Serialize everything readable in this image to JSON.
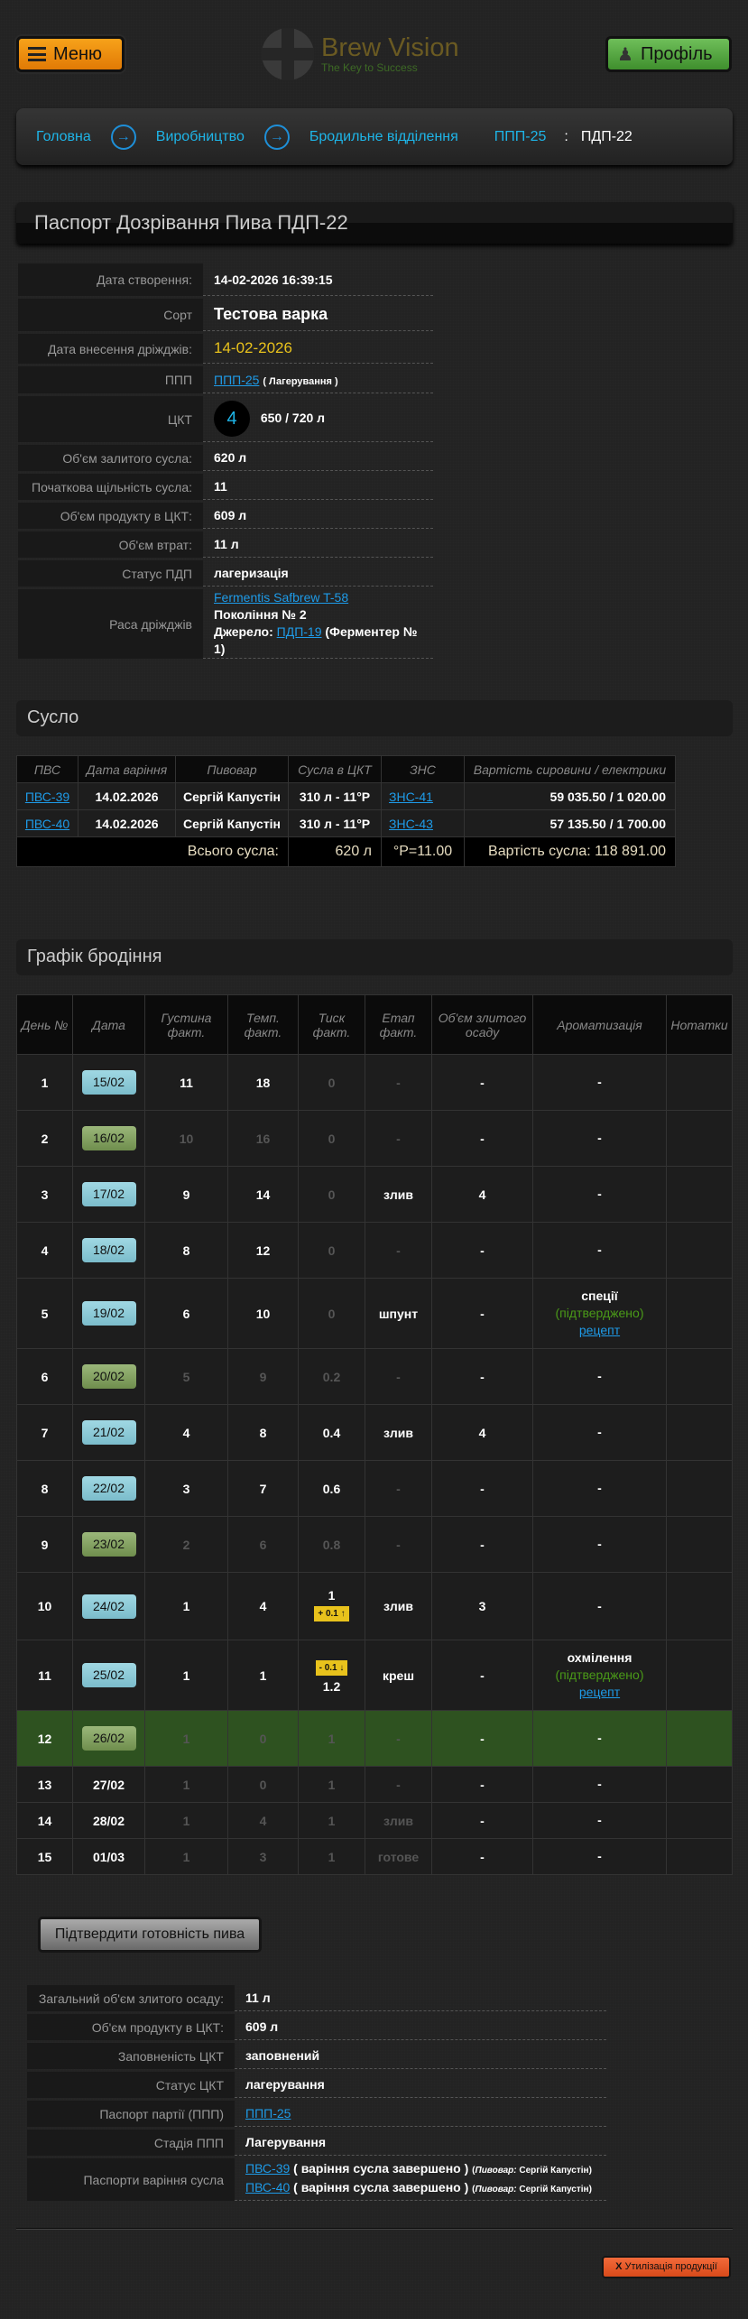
{
  "header": {
    "menu_label": "Меню",
    "logo_name": "Brew Vision",
    "logo_tagline": "The Key to Success",
    "profile_label": "Профіль"
  },
  "breadcrumb": {
    "items": [
      "Головна",
      "Виробництво",
      "Бродильне відділення",
      "ППП-25"
    ],
    "separator": ":",
    "current": "ПДП-22"
  },
  "page_title": "Паспорт Дозрівання Пива ПДП-22",
  "info": {
    "created_label": "Дата створення:",
    "created": "14-02-2026 16:39:15",
    "sort_label": "Сорт",
    "sort": "Тестова варка",
    "yeast_date_label": "Дата внесення дріжджів:",
    "yeast_date": "14-02-2026",
    "ppp_label": "ППП",
    "ppp_link": "ППП-25",
    "ppp_stage": "( Лагерування )",
    "ckt_label": "ЦКТ",
    "ckt_number": "4",
    "ckt_volume": "650 / 720 л",
    "wort_volume_label": "Об'єм залитого сусла:",
    "wort_volume": "620 л",
    "gravity_label": "Початкова щільність сусла:",
    "gravity": "11",
    "product_volume_label": "Об'єм продукту в ЦКТ:",
    "product_volume": "609 л",
    "loss_label": "Об'єм втрат:",
    "loss": "11 л",
    "status_label": "Статус ПДП",
    "status": "лагеризація",
    "yeast_label": "Раса дріжджів",
    "yeast_link": "Fermentis Safbrew T-58",
    "generation": "Покоління № 2",
    "source_label": "Джерело:",
    "source_link": "ПДП-19",
    "source_note": "(Ферментер № 1)"
  },
  "wort": {
    "title": "Сусло",
    "columns": [
      "ПВС",
      "Дата варіння",
      "Пивовар",
      "Сусла в ЦКТ",
      "ЗНС",
      "Вартість сировини / електрики"
    ],
    "rows": [
      {
        "pvs": "ПВС-39",
        "date": "14.02.2026",
        "brewer": "Сергій Капустін",
        "volume": "310 л - 11°P",
        "zns": "ЗНС-41",
        "cost": "59 035.50 / 1 020.00"
      },
      {
        "pvs": "ПВС-40",
        "date": "14.02.2026",
        "brewer": "Сергій Капустін",
        "volume": "310 л - 11°P",
        "zns": "ЗНС-43",
        "cost": "57 135.50 / 1 700.00"
      }
    ],
    "total_label": "Всього сусла:",
    "total_volume": "620 л",
    "total_gravity": "°P=11.00",
    "total_cost": "Вартість сусла: 118 891.00"
  },
  "ferment": {
    "title": "Графік бродіння",
    "columns": [
      "День №",
      "Дата",
      "Густина факт.",
      "Темп. факт.",
      "Тиск факт.",
      "Етап факт.",
      "Об'єм злитого осаду",
      "Ароматизація",
      "Нотатки"
    ],
    "rows": [
      {
        "day": "1",
        "date": "15/02",
        "badge": "blue",
        "density": "11",
        "temp": "18",
        "pressure": "0",
        "stage": "-",
        "sediment": "-",
        "aroma": "-",
        "notes": "",
        "planned": [
          "pressure",
          "stage"
        ]
      },
      {
        "day": "2",
        "date": "16/02",
        "badge": "green",
        "density": "10",
        "temp": "16",
        "pressure": "0",
        "stage": "-",
        "sediment": "-",
        "aroma": "-",
        "notes": "",
        "planned": [
          "density",
          "temp",
          "pressure",
          "stage"
        ]
      },
      {
        "day": "3",
        "date": "17/02",
        "badge": "blue",
        "density": "9",
        "temp": "14",
        "pressure": "0",
        "stage": "злив",
        "sediment": "4",
        "aroma": "-",
        "notes": "",
        "planned": [
          "pressure"
        ]
      },
      {
        "day": "4",
        "date": "18/02",
        "badge": "blue",
        "density": "8",
        "temp": "12",
        "pressure": "0",
        "stage": "-",
        "sediment": "-",
        "aroma": "-",
        "notes": "",
        "planned": [
          "pressure",
          "stage"
        ]
      },
      {
        "day": "5",
        "date": "19/02",
        "badge": "blue",
        "density": "6",
        "temp": "10",
        "pressure": "0",
        "stage": "шпунт",
        "sediment": "-",
        "aroma": "спеції",
        "aroma_status": "(підтверджено)",
        "aroma_link": "рецепт",
        "notes": "",
        "planned": [
          "pressure"
        ]
      },
      {
        "day": "6",
        "date": "20/02",
        "badge": "green",
        "density": "5",
        "temp": "9",
        "pressure": "0.2",
        "stage": "-",
        "sediment": "-",
        "aroma": "-",
        "notes": "",
        "planned": [
          "density",
          "temp",
          "pressure",
          "stage"
        ]
      },
      {
        "day": "7",
        "date": "21/02",
        "badge": "blue",
        "density": "4",
        "temp": "8",
        "pressure": "0.4",
        "stage": "злив",
        "sediment": "4",
        "aroma": "-",
        "notes": "",
        "planned": []
      },
      {
        "day": "8",
        "date": "22/02",
        "badge": "blue",
        "density": "3",
        "temp": "7",
        "pressure": "0.6",
        "stage": "-",
        "sediment": "-",
        "aroma": "-",
        "notes": "",
        "planned": [
          "stage"
        ]
      },
      {
        "day": "9",
        "date": "23/02",
        "badge": "green",
        "density": "2",
        "temp": "6",
        "pressure": "0.8",
        "stage": "-",
        "sediment": "-",
        "aroma": "-",
        "notes": "",
        "planned": [
          "density",
          "temp",
          "pressure",
          "stage"
        ]
      },
      {
        "day": "10",
        "date": "24/02",
        "badge": "blue",
        "density": "1",
        "temp": "4",
        "pressure": "1",
        "pressure_change": "+ 0.1 ↑",
        "change_pos": "after",
        "stage": "злив",
        "sediment": "3",
        "aroma": "-",
        "notes": "",
        "planned": []
      },
      {
        "day": "11",
        "date": "25/02",
        "badge": "blue",
        "density": "1",
        "temp": "1",
        "pressure": "1.2",
        "pressure_change": "- 0.1 ↓",
        "change_pos": "before",
        "stage": "креш",
        "sediment": "-",
        "aroma": "охмілення",
        "aroma_status": "(підтверджено)",
        "aroma_link": "рецепт",
        "notes": "",
        "planned": []
      },
      {
        "day": "12",
        "date": "26/02",
        "badge": "green",
        "density": "1",
        "temp": "0",
        "pressure": "1",
        "stage": "-",
        "sediment": "-",
        "aroma": "-",
        "notes": "",
        "planned": [
          "density",
          "temp",
          "pressure",
          "stage"
        ],
        "current": true
      },
      {
        "day": "13",
        "date": "27/02",
        "badge": "none",
        "density": "1",
        "temp": "0",
        "pressure": "1",
        "stage": "-",
        "sediment": "-",
        "aroma": "-",
        "notes": "",
        "planned": [
          "density",
          "temp",
          "pressure",
          "stage"
        ]
      },
      {
        "day": "14",
        "date": "28/02",
        "badge": "none",
        "density": "1",
        "temp": "4",
        "pressure": "1",
        "stage": "злив",
        "sediment": "-",
        "aroma": "-",
        "notes": "",
        "planned": [
          "density",
          "temp",
          "pressure",
          "stage"
        ]
      },
      {
        "day": "15",
        "date": "01/03",
        "badge": "none",
        "density": "1",
        "temp": "3",
        "pressure": "1",
        "stage": "готове",
        "sediment": "-",
        "aroma": "-",
        "notes": "",
        "planned": [
          "density",
          "temp",
          "pressure",
          "stage"
        ]
      }
    ]
  },
  "confirm_button": "Підтвердити готовність пива",
  "summary": {
    "sediment_label": "Загальний об'єм злитого осаду:",
    "sediment": "11 л",
    "product_label": "Об'єм продукту в ЦКТ:",
    "product": "609 л",
    "fill_label": "Заповненість ЦКТ",
    "fill": "заповнений",
    "ckt_status_label": "Статус ЦКТ",
    "ckt_status": "лагерування",
    "batch_label": "Паспорт партії (ППП)",
    "batch_link": "ППП-25",
    "stage_label": "Стадія ППП",
    "stage": "Лагерування",
    "brew_label": "Паспорти варіння сусла",
    "brews": [
      {
        "link": "ПВС-39",
        "status": "( варіння сусла завершено )",
        "brewer_label": "Пивовар:",
        "brewer": "Сергій Капустін"
      },
      {
        "link": "ПВС-40",
        "status": "( варіння сусла завершено )",
        "brewer_label": "Пивовар:",
        "brewer": "Сергій Капустін"
      }
    ]
  },
  "dispose_button": "Утилізація продукції",
  "dispose_icon": "X",
  "colors": {
    "accent_link": "#1e9be8",
    "menu": "#f7a21a",
    "profile": "#4fa03a",
    "date_actual": "#8fcbd6",
    "date_planned": "#8aa56a",
    "current_row": "#2e5220",
    "yeast_date": "#e8c21c",
    "confirmed": "#4a9a18",
    "dispose": "#e85a2a"
  }
}
